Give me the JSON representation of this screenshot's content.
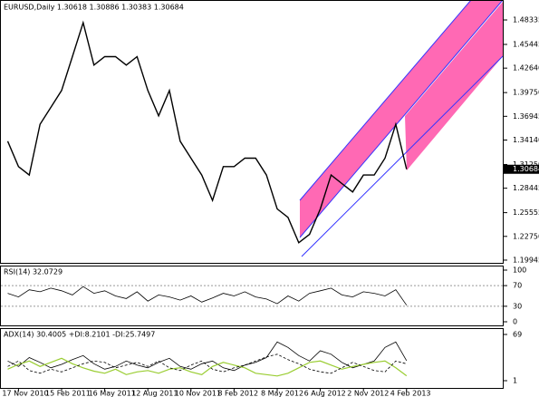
{
  "chart_data": [
    {
      "type": "line",
      "title": "EURUSD,Daily 1.30618 1.30886 1.30383 1.30684",
      "color": "#000000",
      "values": [
        1.34,
        1.31,
        1.3,
        1.36,
        1.38,
        1.4,
        1.44,
        1.48,
        1.43,
        1.44,
        1.44,
        1.43,
        1.44,
        1.4,
        1.37,
        1.4,
        1.34,
        1.32,
        1.3,
        1.27,
        1.31,
        1.31,
        1.32,
        1.32,
        1.3,
        1.26,
        1.25,
        1.22,
        1.23,
        1.26,
        1.3,
        1.29,
        1.28,
        1.3,
        1.3,
        1.32,
        1.36,
        1.30684
      ],
      "last_price": 1.30684,
      "ylim": [
        1.1962,
        1.5048
      ],
      "yticks": [
        1.48335,
        1.45445,
        {
          "value": 1.4264,
          "label": "1.42640"
        },
        {
          "value": 1.3975,
          "label": "1.39750"
        },
        1.36945,
        {
          "value": 1.3414,
          "label": "1.34140"
        },
        {
          "value": 1.3125,
          "label": "1.31250"
        },
        1.28445,
        1.25555,
        {
          "value": 1.2275,
          "label": "1.22750"
        },
        1.19945
      ]
    },
    {
      "type": "line",
      "title": "RSI(14) 32.0729",
      "color": "#000000",
      "values": [
        55,
        48,
        62,
        58,
        65,
        60,
        52,
        68,
        55,
        60,
        50,
        45,
        58,
        40,
        52,
        48,
        42,
        50,
        38,
        46,
        55,
        50,
        58,
        48,
        44,
        35,
        50,
        40,
        55,
        60,
        65,
        52,
        48,
        58,
        55,
        50,
        62,
        32.0729
      ],
      "ylim": [
        0,
        100
      ],
      "yticks": [
        100,
        70,
        30,
        0
      ]
    },
    {
      "type": "line",
      "title": "ADX(14) 30.4005 +DI:8.2101 -DI:25.7497",
      "categories": [
        null,
        "17 Nov 2010",
        null,
        null,
        null,
        "15 Feb 2011",
        null,
        null,
        null,
        "16 May 2011",
        null,
        null,
        null,
        "12 Aug 2011",
        null,
        null,
        null,
        "10 Nov 2011",
        null,
        null,
        null,
        "8 Feb 2012",
        null,
        null,
        null,
        "8 May 2012",
        null,
        null,
        null,
        "6 Aug 2012",
        null,
        null,
        null,
        "2 Nov 2012",
        null,
        null,
        null,
        "4 Feb 2013"
      ],
      "series": [
        {
          "color": "#000000",
          "values": [
            30,
            22,
            35,
            28,
            20,
            25,
            32,
            38,
            26,
            18,
            22,
            30,
            24,
            20,
            28,
            34,
            22,
            18,
            26,
            30,
            20,
            16,
            24,
            28,
            35,
            58,
            50,
            38,
            30,
            45,
            40,
            28,
            20,
            25,
            30,
            50,
            58,
            30.4005
          ]
        },
        {
          "color": "#9acd32",
          "values": [
            18,
            25,
            30,
            22,
            28,
            34,
            26,
            20,
            15,
            12,
            18,
            10,
            14,
            16,
            12,
            18,
            20,
            14,
            10,
            22,
            28,
            24,
            20,
            12,
            10,
            8,
            12,
            20,
            28,
            30,
            24,
            18,
            22,
            25,
            28,
            30,
            20,
            8.2101
          ]
        },
        {
          "color": "#000000",
          "values": [
            22,
            30,
            16,
            12,
            18,
            14,
            20,
            26,
            30,
            28,
            20,
            24,
            28,
            22,
            30,
            20,
            16,
            24,
            30,
            18,
            14,
            20,
            24,
            30,
            36,
            40,
            32,
            26,
            18,
            14,
            12,
            20,
            28,
            22,
            16,
            14,
            30,
            25.7497
          ]
        }
      ],
      "ylim": [
        1,
        69
      ],
      "yticks": [
        69,
        1
      ]
    }
  ]
}
